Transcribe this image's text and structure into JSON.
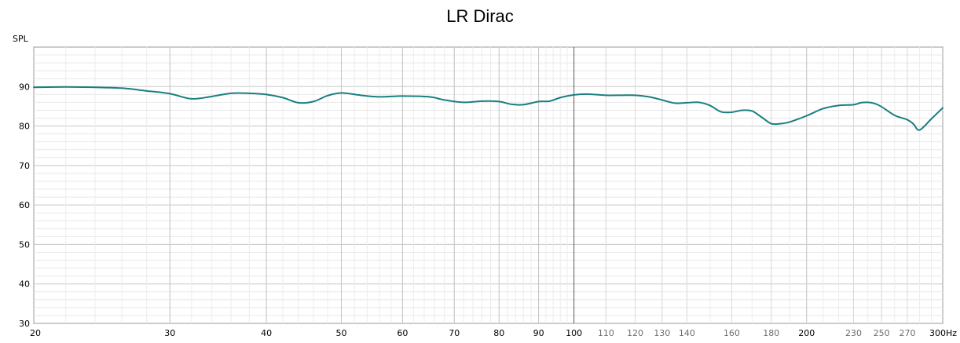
{
  "chart_data": {
    "type": "line",
    "title": "LR Dirac",
    "ylabel": "SPL",
    "x_unit": "Hz",
    "x_scale": "log",
    "xlim": [
      20,
      300
    ],
    "ylim": [
      30,
      100
    ],
    "grid": true,
    "line_color": "#1a7f7f",
    "x_ticks": [
      {
        "value": 20,
        "label": "20",
        "major": true
      },
      {
        "value": 30,
        "label": "30",
        "major": true
      },
      {
        "value": 40,
        "label": "40",
        "major": true
      },
      {
        "value": 50,
        "label": "50",
        "major": true
      },
      {
        "value": 60,
        "label": "60",
        "major": true
      },
      {
        "value": 70,
        "label": "70",
        "major": true
      },
      {
        "value": 80,
        "label": "80",
        "major": true
      },
      {
        "value": 90,
        "label": "90",
        "major": true
      },
      {
        "value": 100,
        "label": "100",
        "major": true
      },
      {
        "value": 110,
        "label": "110",
        "major": false
      },
      {
        "value": 120,
        "label": "120",
        "major": false
      },
      {
        "value": 130,
        "label": "130",
        "major": false
      },
      {
        "value": 140,
        "label": "140",
        "major": false
      },
      {
        "value": 160,
        "label": "160",
        "major": false
      },
      {
        "value": 180,
        "label": "180",
        "major": false
      },
      {
        "value": 200,
        "label": "200",
        "major": true
      },
      {
        "value": 230,
        "label": "230",
        "major": false
      },
      {
        "value": 250,
        "label": "250",
        "major": false
      },
      {
        "value": 270,
        "label": "270",
        "major": false
      },
      {
        "value": 300,
        "label": "300Hz",
        "major": true
      }
    ],
    "y_ticks": [
      30,
      40,
      50,
      60,
      70,
      80,
      90
    ],
    "series": [
      {
        "x": [
          20,
          22,
          24,
          26,
          28,
          30,
          32,
          34,
          36,
          38,
          40,
          42,
          44,
          46,
          48,
          50,
          53,
          56,
          60,
          65,
          68,
          72,
          76,
          80,
          83,
          86,
          90,
          93,
          96,
          100,
          104,
          110,
          115,
          120,
          125,
          130,
          135,
          140,
          145,
          150,
          155,
          160,
          165,
          170,
          175,
          180,
          185,
          190,
          200,
          210,
          220,
          230,
          235,
          240,
          245,
          250,
          260,
          270,
          275,
          280,
          290,
          300
        ],
        "y": [
          89.8,
          89.9,
          89.8,
          89.6,
          88.9,
          88.2,
          86.9,
          87.5,
          88.3,
          88.3,
          88.0,
          87.2,
          85.9,
          86.2,
          87.7,
          88.4,
          87.8,
          87.4,
          87.6,
          87.4,
          86.6,
          86.0,
          86.3,
          86.2,
          85.5,
          85.4,
          86.2,
          86.3,
          87.2,
          87.9,
          88.1,
          87.8,
          87.8,
          87.8,
          87.4,
          86.6,
          85.8,
          85.9,
          86.0,
          85.2,
          83.6,
          83.5,
          84.0,
          83.8,
          82.2,
          80.6,
          80.6,
          81.0,
          82.6,
          84.4,
          85.2,
          85.4,
          85.9,
          86.0,
          85.7,
          84.9,
          82.7,
          81.6,
          80.5,
          79.0,
          81.8,
          84.6
        ]
      }
    ]
  }
}
